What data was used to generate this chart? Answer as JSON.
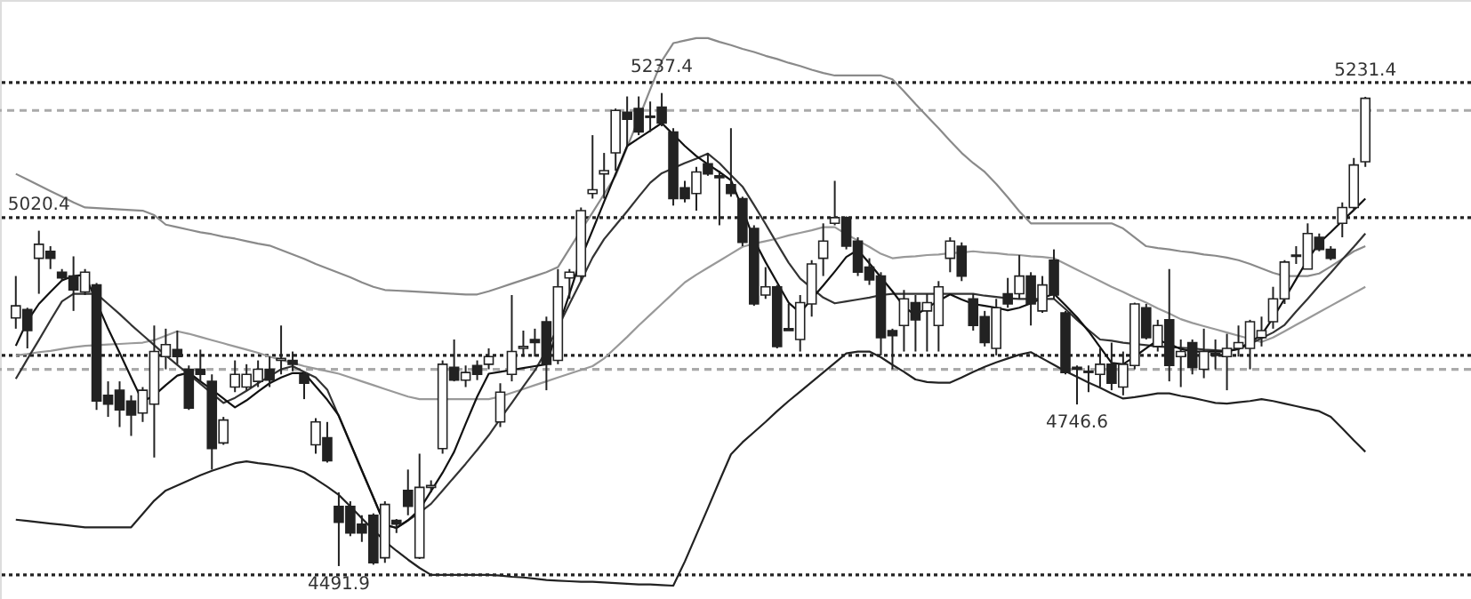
{
  "chart_data": {
    "type": "candlestick",
    "color": "#222222",
    "categories": [
      null,
      null,
      null,
      null,
      null,
      null,
      null,
      null,
      null,
      null,
      null,
      null,
      null,
      null,
      null,
      null,
      null,
      null,
      null,
      null,
      null,
      null,
      null,
      null,
      null,
      null,
      null,
      null,
      null,
      null,
      null,
      null,
      null,
      null,
      null,
      null,
      null,
      null,
      null,
      null,
      null,
      null,
      null,
      null,
      null,
      null,
      null,
      null,
      null,
      null,
      null,
      null,
      null,
      null,
      null,
      null,
      null,
      null,
      null,
      null,
      null,
      null,
      null,
      null,
      null,
      null,
      null,
      null,
      null,
      null,
      null,
      null,
      null,
      null,
      null,
      null,
      null,
      null,
      null,
      null,
      null,
      null,
      null,
      null,
      null,
      null,
      null,
      null,
      null,
      null,
      null,
      null,
      null,
      null,
      null,
      null,
      null,
      null,
      null,
      null,
      null,
      null,
      null,
      null,
      null,
      null,
      null,
      null,
      null,
      null,
      null,
      null,
      null,
      null,
      null,
      null,
      null,
      null
    ],
    "ohlc": [
      [
        4883,
        4949,
        4866,
        4902
      ],
      [
        4896,
        4899,
        4835,
        4863
      ],
      [
        4977,
        5020.4,
        4921,
        4999
      ],
      [
        4988,
        4996,
        4960,
        4977
      ],
      [
        4955,
        4960,
        4941,
        4946
      ],
      [
        4949,
        4980,
        4894,
        4927
      ],
      [
        4924,
        4960,
        4919,
        4955
      ],
      [
        4935,
        4938,
        4738,
        4752
      ],
      [
        4761,
        4783,
        4727,
        4747
      ],
      [
        4769,
        4783,
        4711,
        4738
      ],
      [
        4752,
        4761,
        4697,
        4730
      ],
      [
        4733,
        4774,
        4719,
        4769
      ],
      [
        4747,
        4871,
        4663,
        4830
      ],
      [
        4822,
        4866,
        4802,
        4841
      ],
      [
        4833,
        4863,
        4810,
        4822
      ],
      [
        4802,
        4808,
        4738,
        4741
      ],
      [
        4802,
        4833,
        4783,
        4794
      ],
      [
        4783,
        4794,
        4644,
        4677
      ],
      [
        4686,
        4727,
        4683,
        4722
      ],
      [
        4774,
        4816,
        4766,
        4794
      ],
      [
        4774,
        4810,
        4769,
        4794
      ],
      [
        4783,
        4816,
        4774,
        4802
      ],
      [
        4802,
        4822,
        4774,
        4785
      ],
      [
        4816,
        4871,
        4794,
        4819
      ],
      [
        4816,
        4830,
        4799,
        4810
      ],
      [
        4794,
        4797,
        4755,
        4780
      ],
      [
        4683,
        4725,
        4669,
        4719
      ],
      [
        4694,
        4719,
        4655,
        4658
      ],
      [
        4586,
        4608,
        4491.9,
        4561
      ],
      [
        4586,
        4594,
        4539,
        4544
      ],
      [
        4558,
        4572,
        4530,
        4544
      ],
      [
        4572,
        4575,
        4494,
        4497
      ],
      [
        4505,
        4594,
        4497,
        4589
      ],
      [
        4564,
        4566,
        4544,
        4558
      ],
      [
        4611,
        4644,
        4572,
        4586
      ],
      [
        4505,
        4669,
        4503,
        4616
      ],
      [
        4616,
        4627,
        4608,
        4619
      ],
      [
        4677,
        4816,
        4669,
        4810
      ],
      [
        4805,
        4849,
        4783,
        4785
      ],
      [
        4785,
        4808,
        4774,
        4797
      ],
      [
        4808,
        4816,
        4785,
        4794
      ],
      [
        4810,
        4835,
        4802,
        4822
      ],
      [
        4719,
        4780,
        4711,
        4766
      ],
      [
        4794,
        4919,
        4783,
        4830
      ],
      [
        4835,
        4863,
        4822,
        4838
      ],
      [
        4849,
        4866,
        4822,
        4844
      ],
      [
        4877,
        4885,
        4769,
        4810
      ],
      [
        4816,
        4960,
        4810,
        4932
      ],
      [
        4946,
        4960,
        4913,
        4955
      ],
      [
        4949,
        5057,
        4941,
        5052
      ],
      [
        5079,
        5171,
        5071,
        5085
      ],
      [
        5110,
        5143,
        5071,
        5115
      ],
      [
        5143,
        5213,
        5115,
        5210
      ],
      [
        5207,
        5232,
        5154,
        5196
      ],
      [
        5213,
        5232,
        5171,
        5176
      ],
      [
        5201,
        5224,
        5176,
        5199
      ],
      [
        5215,
        5237.4,
        5185,
        5190
      ],
      [
        5176,
        5182,
        5060,
        5071
      ],
      [
        5088,
        5099,
        5065,
        5071
      ],
      [
        5079,
        5121,
        5052,
        5113
      ],
      [
        5126,
        5143,
        5107,
        5110
      ],
      [
        5107,
        5115,
        5029,
        5104
      ],
      [
        5093,
        5182,
        5074,
        5079
      ],
      [
        5071,
        5074,
        4996,
        5002
      ],
      [
        5024,
        5029,
        4902,
        4905
      ],
      [
        4919,
        4963,
        4913,
        4932
      ],
      [
        4932,
        4935,
        4835,
        4838
      ],
      [
        4866,
        4905,
        4863,
        4863
      ],
      [
        4849,
        4919,
        4830,
        4907
      ],
      [
        4905,
        4974,
        4885,
        4968
      ],
      [
        4977,
        5032,
        4949,
        5004
      ],
      [
        5032,
        5099,
        5029,
        5041
      ],
      [
        5041,
        5043,
        4991,
        4996
      ],
      [
        5004,
        5010,
        4949,
        4955
      ],
      [
        4963,
        4977,
        4935,
        4943
      ],
      [
        4949,
        4955,
        4824,
        4852
      ],
      [
        4863,
        4866,
        4802,
        4855
      ],
      [
        4871,
        4927,
        4830,
        4913
      ],
      [
        4907,
        4919,
        4830,
        4880
      ],
      [
        4894,
        4921,
        4830,
        4907
      ],
      [
        4871,
        4941,
        4830,
        4932
      ],
      [
        4977,
        5010,
        4955,
        5004
      ],
      [
        4996,
        5002,
        4941,
        4949
      ],
      [
        4913,
        4921,
        4863,
        4871
      ],
      [
        4885,
        4894,
        4838,
        4844
      ],
      [
        4835,
        4913,
        4824,
        4899
      ],
      [
        4921,
        4946,
        4899,
        4905
      ],
      [
        4921,
        4982,
        4913,
        4949
      ],
      [
        4949,
        4955,
        4871,
        4905
      ],
      [
        4894,
        4949,
        4891,
        4935
      ],
      [
        4974,
        4991,
        4913,
        4919
      ],
      [
        4891,
        4894,
        4794,
        4797
      ],
      [
        4805,
        4808,
        4746.6,
        4802
      ],
      [
        4799,
        4808,
        4766,
        4797
      ],
      [
        4794,
        4835,
        4774,
        4810
      ],
      [
        4810,
        4844,
        4769,
        4780
      ],
      [
        4774,
        4830,
        4761,
        4810
      ],
      [
        4808,
        4907,
        4802,
        4905
      ],
      [
        4899,
        4905,
        4849,
        4852
      ],
      [
        4838,
        4880,
        4830,
        4871
      ],
      [
        4880,
        4960,
        4783,
        4808
      ],
      [
        4822,
        4849,
        4774,
        4830
      ],
      [
        4844,
        4849,
        4794,
        4805
      ],
      [
        4802,
        4866,
        4788,
        4830
      ],
      [
        4827,
        4849,
        4802,
        4824
      ],
      [
        4822,
        4858,
        4769,
        4835
      ],
      [
        4835,
        4871,
        4822,
        4844
      ],
      [
        4835,
        4880,
        4802,
        4877
      ],
      [
        4852,
        4885,
        4838,
        4863
      ],
      [
        4877,
        4932,
        4866,
        4913
      ],
      [
        4913,
        4974,
        4905,
        4971
      ],
      [
        4980,
        4996,
        4968,
        4982
      ],
      [
        4960,
        5032,
        4960,
        5016
      ],
      [
        5010,
        5016,
        4988,
        4991
      ],
      [
        4991,
        4996,
        4974,
        4977
      ],
      [
        5032,
        5065,
        5010,
        5057
      ],
      [
        5057,
        5135,
        5052,
        5124
      ],
      [
        5129,
        5231.4,
        5121,
        5229
      ]
    ],
    "series": [
      {
        "type": "line",
        "color": "#8a8a8a",
        "values": [
          5110,
          5101,
          5092,
          5083,
          5074,
          5065,
          5057,
          5056,
          5055,
          5054,
          5053,
          5052,
          5045,
          5030,
          5026,
          5022,
          5018,
          5015,
          5011,
          5008,
          5004,
          5000,
          4997,
          4990,
          4983,
          4976,
          4968,
          4961,
          4954,
          4947,
          4939,
          4932,
          4927,
          4926,
          4925,
          4924,
          4923,
          4922,
          4921,
          4920,
          4920,
          4925,
          4931,
          4937,
          4943,
          4949,
          4955,
          4963,
          4992,
          5021,
          5049,
          5078,
          5107,
          5152,
          5197,
          5243,
          5288,
          5316,
          5320,
          5324,
          5324,
          5318,
          5313,
          5307,
          5302,
          5296,
          5291,
          5285,
          5280,
          5274,
          5269,
          5265,
          5265,
          5265,
          5265,
          5265,
          5259,
          5240,
          5220,
          5201,
          5182,
          5162,
          5143,
          5127,
          5113,
          5094,
          5073,
          5051,
          5032,
          5032,
          5032,
          5032,
          5032,
          5032,
          5032,
          5032,
          5024,
          5010,
          4996,
          4993,
          4991,
          4988,
          4986,
          4983,
          4981,
          4978,
          4974,
          4968,
          4961,
          4954,
          4949,
          4949,
          4949,
          4953,
          4964,
          4976,
          4988,
          4996
        ]
      },
      {
        "type": "line",
        "color": "#222222",
        "values": [
          4565,
          4563,
          4561,
          4559,
          4557,
          4555,
          4553,
          4553,
          4553,
          4553,
          4553,
          4574,
          4595,
          4611,
          4619,
          4627,
          4635,
          4642,
          4648,
          4654,
          4657,
          4654,
          4652,
          4649,
          4646,
          4640,
          4629,
          4617,
          4604,
          4586,
          4567,
          4549,
          4531,
          4516,
          4502,
          4489,
          4478,
          4478,
          4478,
          4478,
          4478,
          4478,
          4477,
          4475,
          4474,
          4472,
          4470,
          4469,
          4468,
          4467,
          4467,
          4466,
          4465,
          4464,
          4463,
          4463,
          4462,
          4461,
          4499,
          4541,
          4583,
          4626,
          4668,
          4687,
          4703,
          4719,
          4736,
          4752,
          4767,
          4782,
          4797,
          4812,
          4827,
          4830,
          4830,
          4821,
          4809,
          4798,
          4786,
          4782,
          4781,
          4781,
          4789,
          4798,
          4806,
          4813,
          4819,
          4825,
          4829,
          4819,
          4809,
          4799,
          4790,
          4781,
          4773,
          4764,
          4756,
          4758,
          4761,
          4764,
          4764,
          4760,
          4757,
          4753,
          4749,
          4748,
          4750,
          4752,
          4755,
          4752,
          4748,
          4744,
          4740,
          4736,
          4727,
          4709,
          4690,
          4672
        ]
      },
      {
        "type": "line",
        "color": "#999999",
        "values": [
          4824,
          4826,
          4829,
          4831,
          4834,
          4837,
          4839,
          4840,
          4841,
          4842,
          4843,
          4844,
          4848,
          4855,
          4862,
          4858,
          4853,
          4848,
          4843,
          4838,
          4833,
          4828,
          4822,
          4817,
          4812,
          4807,
          4803,
          4799,
          4795,
          4789,
          4783,
          4777,
          4771,
          4765,
          4759,
          4755,
          4755,
          4755,
          4755,
          4755,
          4755,
          4755,
          4759,
          4765,
          4771,
          4777,
          4783,
          4789,
          4795,
          4801,
          4807,
          4819,
          4836,
          4853,
          4871,
          4888,
          4905,
          4922,
          4939,
          4951,
          4962,
          4973,
          4984,
          4995,
          5000,
          5004,
          5008,
          5013,
          5017,
          5021,
          5026,
          5026,
          5015,
          5005,
          4995,
          4984,
          4977,
          4979,
          4980,
          4982,
          4983,
          4985,
          4986,
          4988,
          4986,
          4985,
          4983,
          4982,
          4980,
          4979,
          4977,
          4968,
          4959,
          4950,
          4941,
          4932,
          4924,
          4915,
          4907,
          4898,
          4890,
          4881,
          4875,
          4870,
          4865,
          4860,
          4855,
          4850,
          4845,
          4852,
          4862,
          4872,
          4882,
          4892,
          4902,
          4912,
          4922,
          4932
        ]
      },
      {
        "type": "line",
        "color": "#333333",
        "values": [
          4787,
          4818,
          4848,
          4879,
          4909,
          4921,
          4921,
          4921,
          4905,
          4889,
          4872,
          4856,
          4840,
          4824,
          4809,
          4794,
          4779,
          4764,
          4749,
          4757,
          4768,
          4780,
          4791,
          4802,
          4807,
          4798,
          4789,
          4770,
          4728,
          4685,
          4642,
          4600,
          4557,
          4552,
          4564,
          4576,
          4590,
          4611,
          4632,
          4653,
          4675,
          4698,
          4724,
          4749,
          4775,
          4800,
          4832,
          4868,
          4905,
          4941,
          4978,
          5007,
          5029,
          5051,
          5074,
          5096,
          5111,
          5119,
          5127,
          5134,
          5142,
          5127,
          5108,
          5090,
          5061,
          5031,
          5000,
          4970,
          4945,
          4930,
          4915,
          4906,
          4909,
          4912,
          4915,
          4919,
          4921,
          4921,
          4921,
          4921,
          4921,
          4921,
          4921,
          4921,
          4918,
          4916,
          4914,
          4913,
          4913,
          4913,
          4913,
          4897,
          4880,
          4864,
          4849,
          4847,
          4844,
          4842,
          4840,
          4838,
          4837,
          4836,
          4835,
          4833,
          4832,
          4831,
          4834,
          4842,
          4851,
          4860,
          4872,
          4893,
          4913,
          4934,
          4954,
          4975,
          4995,
          5016
        ]
      },
      {
        "type": "line",
        "color": "#111111",
        "values": [
          4839,
          4878,
          4905,
          4924,
          4942,
          4949,
          4951,
          4908,
          4866,
          4828,
          4789,
          4751,
          4761,
          4777,
          4792,
          4797,
          4783,
          4770,
          4756,
          4742,
          4753,
          4767,
          4780,
          4789,
          4796,
          4796,
          4775,
          4754,
          4729,
          4686,
          4643,
          4600,
          4557,
          4552,
          4564,
          4581,
          4610,
          4639,
          4672,
          4716,
          4759,
          4795,
          4798,
          4801,
          4804,
          4807,
          4810,
          4866,
          4921,
          4977,
          5021,
          5066,
          5110,
          5154,
          5166,
          5178,
          5190,
          5172,
          5154,
          5138,
          5125,
          5113,
          5100,
          5055,
          5006,
          4971,
          4939,
          4907,
          4891,
          4913,
          4934,
          4956,
          4979,
          4990,
          4969,
          4947,
          4925,
          4901,
          4887,
          4899,
          4910,
          4920,
          4912,
          4905,
          4902,
          4899,
          4895,
          4899,
          4906,
          4914,
          4921,
          4903,
          4884,
          4862,
          4837,
          4812,
          4810,
          4822,
          4835,
          4848,
          4842,
          4834,
          4830,
          4830,
          4830,
          4830,
          4834,
          4845,
          4856,
          4883,
          4913,
          4944,
          4975,
          5001,
          5018,
          5036,
          5053,
          5071
        ]
      }
    ],
    "ref_lines": [
      {
        "axis": "y",
        "value": 5254,
        "color": "#222222",
        "line_style": "dotted"
      },
      {
        "axis": "y",
        "value": 5041,
        "color": "#222222",
        "line_style": "dotted"
      },
      {
        "axis": "y",
        "value": 4824,
        "color": "#222222",
        "line_style": "dotted"
      },
      {
        "axis": "y",
        "value": 4478,
        "color": "#222222",
        "line_style": "dotted"
      },
      {
        "axis": "y",
        "value": 5210,
        "color": "#aaaaaa",
        "line_style": "dashed"
      },
      {
        "axis": "y",
        "value": 4802,
        "color": "#aaaaaa",
        "line_style": "dashed"
      }
    ],
    "annotations": [
      {
        "text": "5020.4",
        "y": 5020.4
      },
      {
        "text": "5237.4",
        "y": 5237.4
      },
      {
        "text": "5231.4",
        "y": 5231.4
      },
      {
        "text": "4746.6",
        "y": 4746.6
      },
      {
        "text": "4491.9",
        "y": 4491.9
      }
    ],
    "ylim": [
      4440,
      5384
    ],
    "tick_labels": false,
    "grid": false
  }
}
